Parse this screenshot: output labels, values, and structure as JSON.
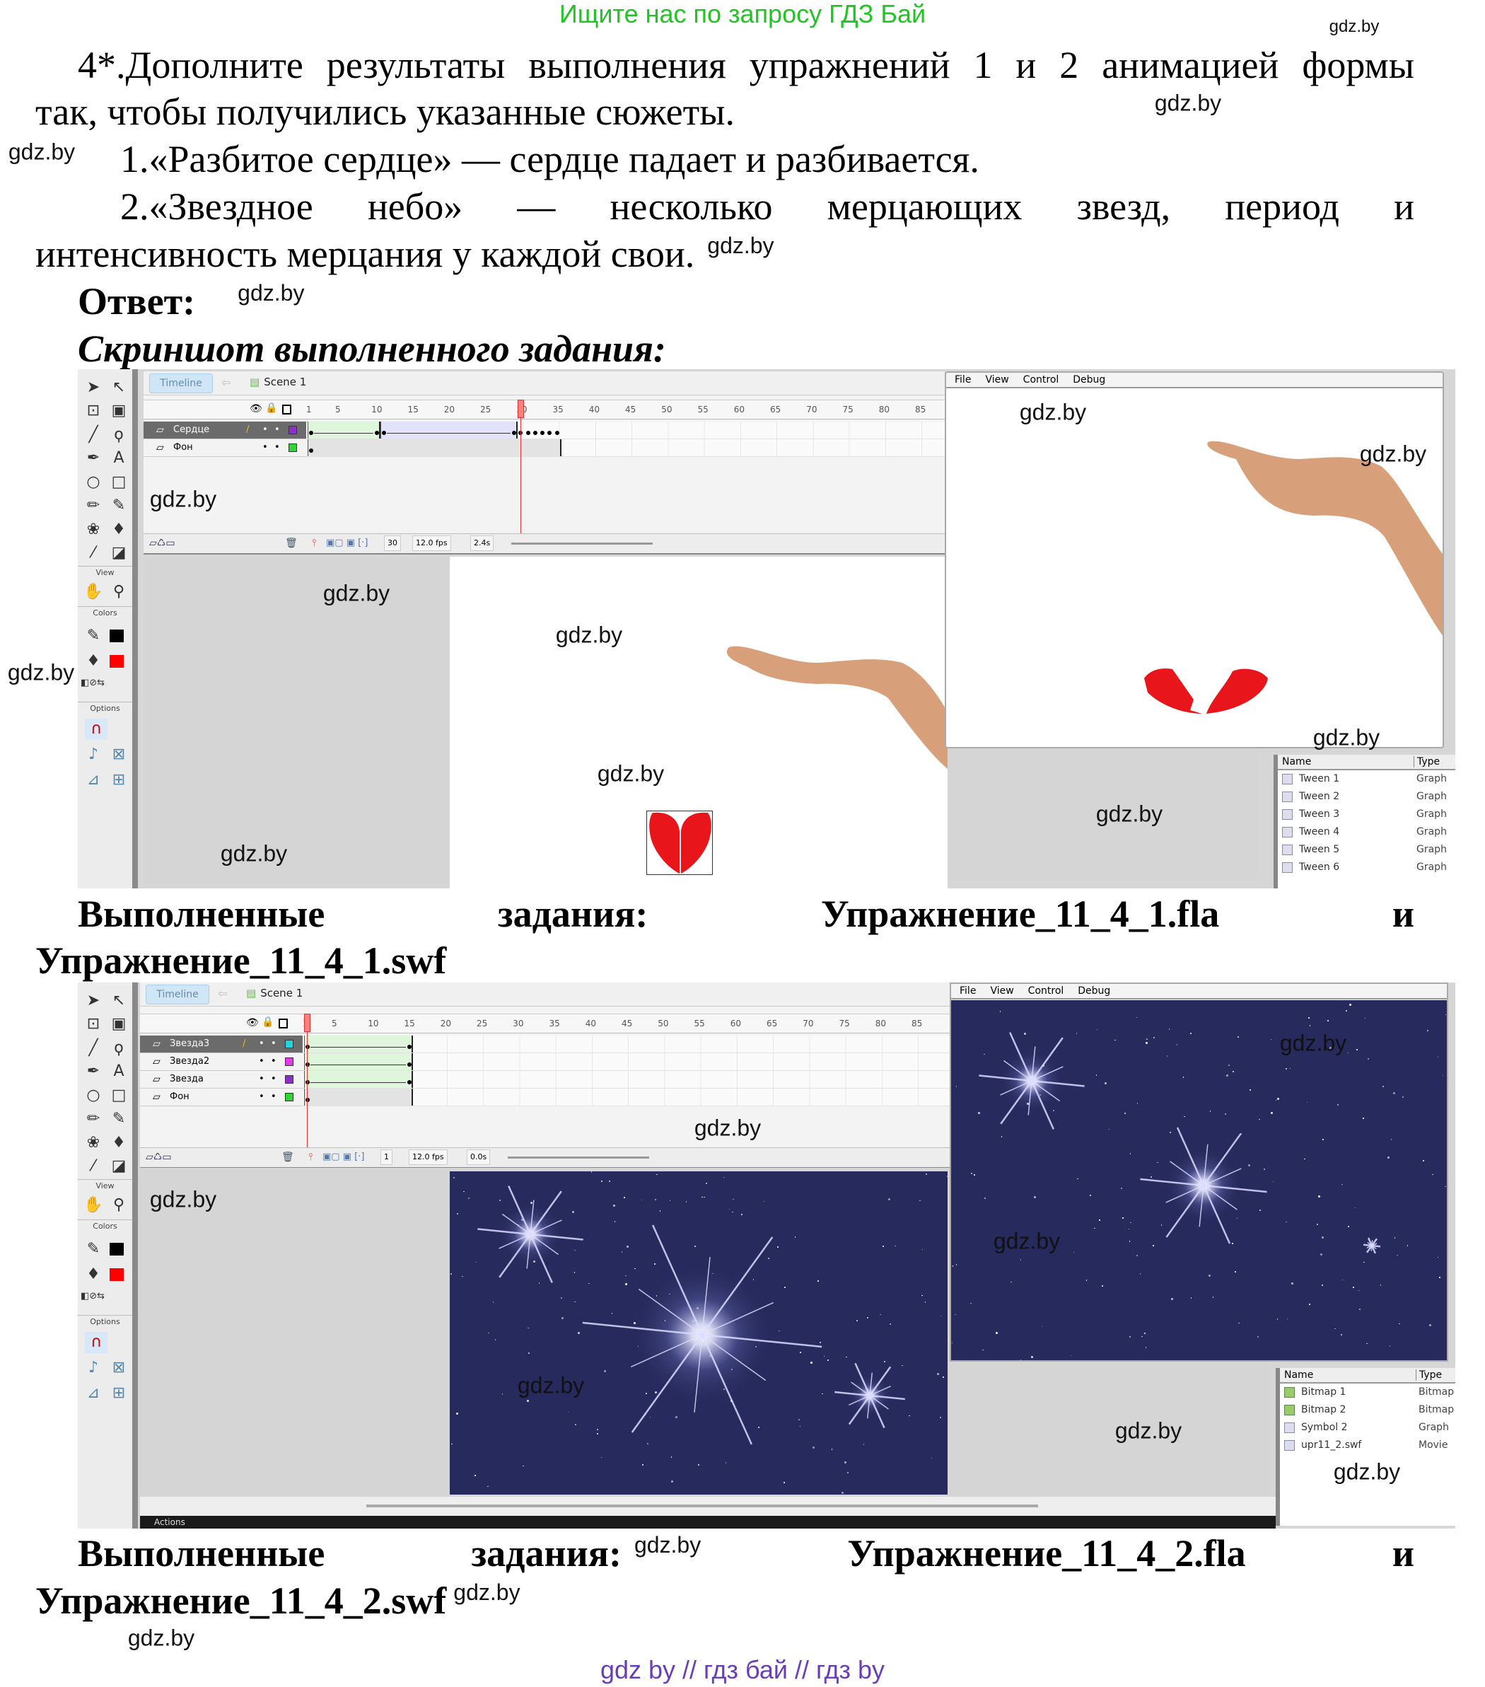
{
  "banner": "Ищите нас по запросу ГДЗ Бай",
  "task": {
    "line1": "4*.Дополните результаты выполнения упражнений 1 и 2 анимацией формы",
    "line2": "так, чтобы получились указанные сюжеты.",
    "item1": "1.«Разбитое сердце» — сердце падает и разбивается.",
    "item2_line1": "2.«Звездное небо» — несколько мерцающих звезд, период и",
    "item2_line2": "интенсивность мерцания у каждой свои."
  },
  "answer_label": "Ответ:",
  "screenshot_caption": "Скриншот выполненного задания:",
  "done1": {
    "word1": "Выполненные",
    "word2": "задания:",
    "file_fla": "Упражнение_11_4_1.fla",
    "conj": "и",
    "file_swf": "Упражнение_11_4_1.swf"
  },
  "done2": {
    "word1": "Выполненные",
    "word2": "задания:",
    "file_fla": "Упражнение_11_4_2.fla",
    "conj": "и",
    "file_swf": "Упражнение_11_4_2.swf"
  },
  "flash_common": {
    "tools": [
      "selection-arrow",
      "subselection-arrow",
      "free-transform",
      "3d-rotation",
      "line",
      "lasso",
      "pen",
      "text",
      "oval",
      "rectangle",
      "pencil",
      "brush",
      "deco",
      "paint-bucket",
      "eyedropper",
      "eraser"
    ],
    "view_label": "View",
    "colors_label": "Colors",
    "options_label": "Options",
    "timeline_tab": "Timeline",
    "scene": "Scene 1",
    "ruler_labels": [
      "1",
      "5",
      "10",
      "15",
      "20",
      "25",
      "30",
      "35",
      "40",
      "45",
      "50",
      "55",
      "60",
      "65",
      "70",
      "75",
      "80",
      "85"
    ],
    "swf_menu": [
      "File",
      "View",
      "Control",
      "Debug"
    ],
    "lib_name_header": "Name",
    "lib_type_header": "Type"
  },
  "flash1": {
    "layers": [
      {
        "name": "Сердце",
        "color": "#8b2fc9",
        "selected": true,
        "spans": [
          {
            "from": 1,
            "to": 10,
            "kind": "shape"
          },
          {
            "from": 11,
            "to": 29,
            "kind": "motion"
          }
        ],
        "keyframes": [
          30,
          31,
          32,
          33,
          34,
          35
        ]
      },
      {
        "name": "Фон",
        "color": "#31d431",
        "selected": false,
        "spans": [
          {
            "from": 1,
            "to": 35,
            "kind": "static"
          }
        ],
        "keyframes": []
      }
    ],
    "playhead": 30,
    "current_frame": "30",
    "fps": "12.0 fps",
    "elapsed": "2.4s",
    "library": [
      {
        "name": "Tween 1",
        "type": "Graph"
      },
      {
        "name": "Tween 2",
        "type": "Graph"
      },
      {
        "name": "Tween 3",
        "type": "Graph"
      },
      {
        "name": "Tween 4",
        "type": "Graph"
      },
      {
        "name": "Tween 5",
        "type": "Graph"
      },
      {
        "name": "Tween 6",
        "type": "Graph"
      }
    ],
    "heart_color": "#e8151b",
    "skin_color": "#d7a07a"
  },
  "flash2": {
    "layers": [
      {
        "name": "Звезда3",
        "color": "#22d3e0",
        "selected": true,
        "spans": [
          {
            "from": 1,
            "to": 15,
            "kind": "shape"
          }
        ],
        "keyframes": []
      },
      {
        "name": "Звезда2",
        "color": "#e23be8",
        "selected": false,
        "spans": [
          {
            "from": 1,
            "to": 15,
            "kind": "shape"
          }
        ],
        "keyframes": []
      },
      {
        "name": "Звезда",
        "color": "#8b2fc9",
        "selected": false,
        "spans": [
          {
            "from": 1,
            "to": 15,
            "kind": "shape"
          }
        ],
        "keyframes": []
      },
      {
        "name": "Фон",
        "color": "#31d431",
        "selected": false,
        "spans": [
          {
            "from": 1,
            "to": 15,
            "kind": "static"
          }
        ],
        "keyframes": []
      }
    ],
    "playhead": 1,
    "current_frame": "1",
    "fps": "12.0 fps",
    "elapsed": "0.0s",
    "library": [
      {
        "name": "Bitmap 1",
        "type": "Bitmap"
      },
      {
        "name": "Bitmap 2",
        "type": "Bitmap"
      },
      {
        "name": "Symbol 2",
        "type": "Graph"
      },
      {
        "name": "upr11_2.swf",
        "type": "Movie"
      }
    ],
    "actions_label": "Actions",
    "sky_color": "#262a5c"
  },
  "watermarks": [
    "gdz.by",
    "gdz.by",
    "gdz.by",
    "gdz.by",
    "gdz.by",
    "gdz.by",
    "gdz.by",
    "gdz.by",
    "gdz.by",
    "gdz.by",
    "gdz.by",
    "gdz.by",
    "gdz.by",
    "gdz.by",
    "gdz.by",
    "gdz.by",
    "gdz.by",
    "gdz.by",
    "gdz.by",
    "gdz.by",
    "gdz.by",
    "gdz.by",
    "gdz.by",
    "gdz.by",
    "gdz.by"
  ],
  "footer": "gdz by  //  гдз бай  //  гдз by"
}
